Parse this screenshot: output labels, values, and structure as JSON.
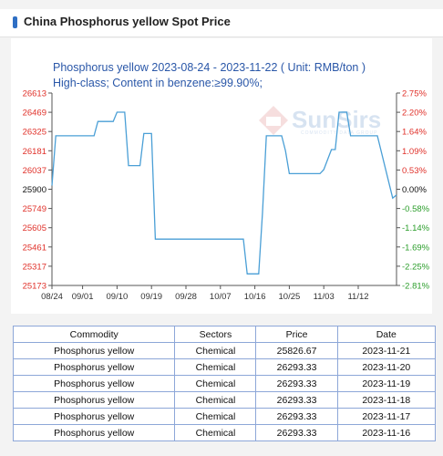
{
  "header": {
    "title": "China Phosphorus yellow Spot Price"
  },
  "chart_data": {
    "type": "line",
    "title": "Phosphorus yellow 2023-08-24 - 2023-11-22    ( Unit: RMB/ton )",
    "subtitle": "High-class; Content in benzene:≥99.90%;",
    "unit": "RMB/ton",
    "left_ticks": [
      "26613",
      "26469",
      "26325",
      "26181",
      "26037",
      "25900",
      "25749",
      "25605",
      "25461",
      "25317",
      "25173"
    ],
    "right_ticks": [
      "2.75%",
      "2.20%",
      "1.64%",
      "1.09%",
      "0.53%",
      "0.00%",
      "-0.58%",
      "-1.14%",
      "-1.69%",
      "-2.25%",
      "-2.81%"
    ],
    "x_ticks": [
      "08/24",
      "09/01",
      "09/10",
      "09/19",
      "09/28",
      "10/07",
      "10/16",
      "10/25",
      "11/03",
      "11/12"
    ],
    "ylim": [
      25173,
      26613
    ],
    "baseline": 25900,
    "x_start": "2023-08-24",
    "series": [
      {
        "name": "Phosphorus yellow",
        "x": [
          "2023-08-24",
          "2023-08-25",
          "2023-09-04",
          "2023-09-05",
          "2023-09-09",
          "2023-09-10",
          "2023-09-12",
          "2023-09-13",
          "2023-09-16",
          "2023-09-17",
          "2023-09-19",
          "2023-09-20",
          "2023-10-13",
          "2023-10-14",
          "2023-10-17",
          "2023-10-18",
          "2023-10-19",
          "2023-10-20",
          "2023-10-23",
          "2023-10-24",
          "2023-10-25",
          "2023-11-02",
          "2023-11-03",
          "2023-11-05",
          "2023-11-06",
          "2023-11-07",
          "2023-11-09",
          "2023-11-10",
          "2023-11-16",
          "2023-11-17",
          "2023-11-21",
          "2023-11-22"
        ],
        "y": [
          25920,
          26293,
          26293,
          26400,
          26400,
          26470,
          26470,
          26070,
          26070,
          26310,
          26310,
          25520,
          25520,
          25260,
          25260,
          25720,
          26293,
          26293,
          26293,
          26180,
          26010,
          26010,
          26040,
          26190,
          26190,
          26470,
          26470,
          26293,
          26293,
          26293,
          25827,
          25850
        ]
      }
    ]
  },
  "watermark": {
    "brand": "SunSirs",
    "tagline": "COMMODITY DATA GROUP"
  },
  "table": {
    "headers": [
      "Commodity",
      "Sectors",
      "Price",
      "Date"
    ],
    "rows": [
      [
        "Phosphorus yellow",
        "Chemical",
        "25826.67",
        "2023-11-21"
      ],
      [
        "Phosphorus yellow",
        "Chemical",
        "26293.33",
        "2023-11-20"
      ],
      [
        "Phosphorus yellow",
        "Chemical",
        "26293.33",
        "2023-11-19"
      ],
      [
        "Phosphorus yellow",
        "Chemical",
        "26293.33",
        "2023-11-18"
      ],
      [
        "Phosphorus yellow",
        "Chemical",
        "26293.33",
        "2023-11-17"
      ],
      [
        "Phosphorus yellow",
        "Chemical",
        "26293.33",
        "2023-11-16"
      ]
    ]
  },
  "colors": {
    "line": "#4a9fd6",
    "left_axis": "#e0312a",
    "right_axis": "#e0312a",
    "right_axis_negative": "#2c9e2c",
    "baseline_label": "#111111",
    "title": "#2a57a8"
  }
}
